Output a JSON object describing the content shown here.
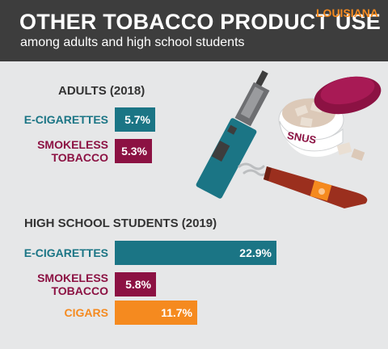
{
  "header": {
    "title": "OTHER TOBACCO PRODUCT USE",
    "subtitle": "among adults and high school students",
    "state": "LOUISIANA"
  },
  "illustration": {
    "snus_label": "SNUS"
  },
  "colors": {
    "teal": "#1b7585",
    "maroon": "#8c1243",
    "orange": "#f58a1f",
    "header_bg": "#3d3d3d",
    "page_bg": "#e6e7e8"
  },
  "chart_data": [
    {
      "type": "bar",
      "orientation": "horizontal",
      "title": "ADULTS (2018)",
      "categories": [
        "E-CIGARETTES",
        "SMOKELESS TOBACCO"
      ],
      "category_lines": [
        [
          "E-CIGARETTES"
        ],
        [
          "SMOKELESS",
          "TOBACCO"
        ]
      ],
      "values": [
        5.7,
        5.3
      ],
      "value_labels": [
        "5.7%",
        "5.3%"
      ],
      "colors": [
        "#1b7585",
        "#8c1243"
      ]
    },
    {
      "type": "bar",
      "orientation": "horizontal",
      "title": "HIGH SCHOOL STUDENTS (2019)",
      "categories": [
        "E-CIGARETTES",
        "SMOKELESS TOBACCO",
        "CIGARS"
      ],
      "category_lines": [
        [
          "E-CIGARETTES"
        ],
        [
          "SMOKELESS",
          "TOBACCO"
        ],
        [
          "CIGARS"
        ]
      ],
      "values": [
        22.9,
        5.8,
        11.7
      ],
      "value_labels": [
        "22.9%",
        "5.8%",
        "11.7%"
      ],
      "colors": [
        "#1b7585",
        "#8c1243",
        "#f58a1f"
      ]
    }
  ]
}
